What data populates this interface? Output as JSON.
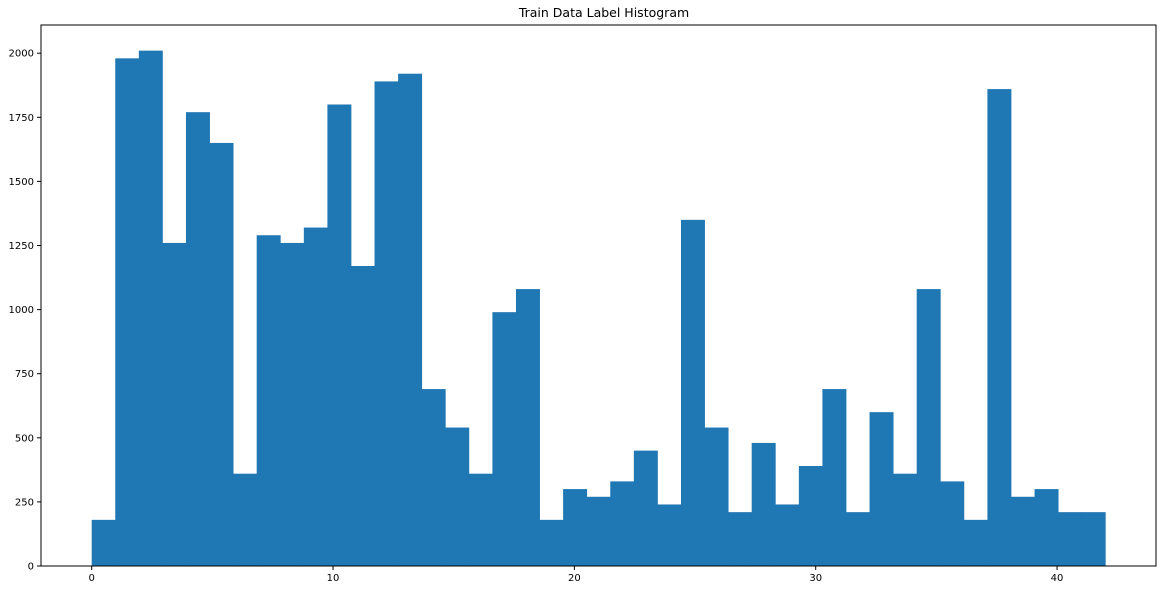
{
  "chart_data": {
    "type": "bar",
    "title": "Train Data Label Histogram",
    "xlabel": "",
    "ylabel": "",
    "xlim": [
      -2.1,
      44.1
    ],
    "ylim": [
      0,
      2110
    ],
    "bin_edges_start": 0,
    "bin_width": 0.9767,
    "x_ticks": [
      0,
      10,
      20,
      30,
      40
    ],
    "y_ticks": [
      0,
      250,
      500,
      750,
      1000,
      1250,
      1500,
      1750,
      2000
    ],
    "values": [
      180,
      1980,
      2010,
      1260,
      1770,
      1650,
      360,
      1290,
      1260,
      1320,
      1800,
      1170,
      1890,
      1920,
      690,
      540,
      360,
      990,
      1080,
      180,
      300,
      270,
      330,
      450,
      240,
      1350,
      540,
      210,
      480,
      240,
      390,
      690,
      210,
      600,
      360,
      1080,
      330,
      180,
      1860,
      270,
      300,
      210,
      210
    ],
    "bar_color": "#1f77b4",
    "grid": false
  }
}
